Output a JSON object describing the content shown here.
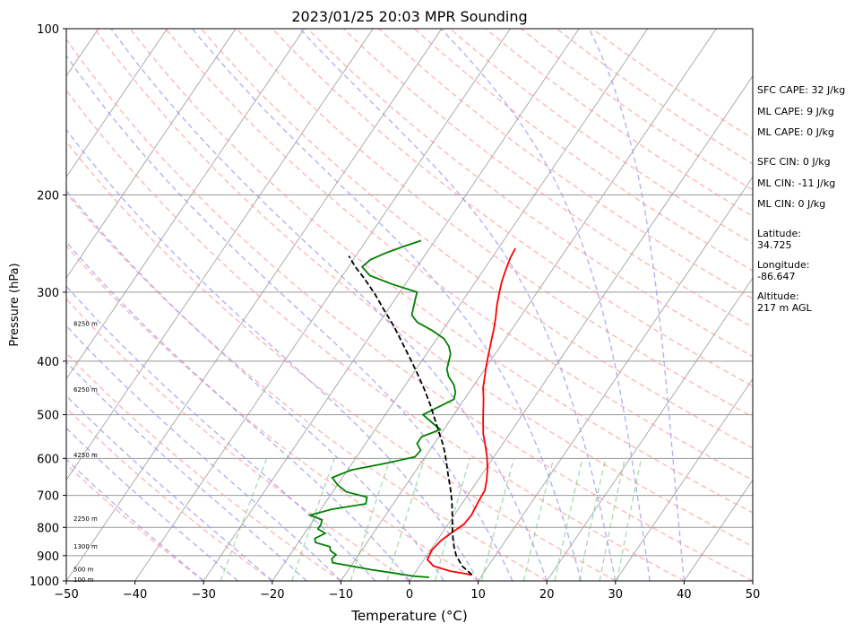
{
  "chart_data": {
    "type": "line",
    "title": "2023/01/25 20:03 MPR Sounding",
    "xlabel": "Temperature (°C)",
    "ylabel": "Pressure (hPa)",
    "xlim": [
      -50,
      50
    ],
    "ylim": [
      1000,
      100
    ],
    "y_scale": "log",
    "skew": "skew-T",
    "grid": true,
    "xticks": [
      "−50",
      "−40",
      "−30",
      "−20",
      "−10",
      "0",
      "10",
      "20",
      "30",
      "40",
      "50"
    ],
    "yticks": [
      "100",
      "200",
      "300",
      "400",
      "500",
      "600",
      "700",
      "800",
      "900",
      "1000"
    ],
    "series": [
      {
        "color": "#ff0000",
        "points": [
          [
            8.5,
            975
          ],
          [
            5,
            960
          ],
          [
            2,
            940
          ],
          [
            0.5,
            915
          ],
          [
            0.2,
            880
          ],
          [
            0.6,
            845
          ],
          [
            1.3,
            820
          ],
          [
            2.3,
            790
          ],
          [
            2.5,
            760
          ],
          [
            2.2,
            720
          ],
          [
            2.0,
            685
          ],
          [
            1.2,
            655
          ],
          [
            0.2,
            625
          ],
          [
            -1.0,
            596
          ],
          [
            -2.4,
            568
          ],
          [
            -3.8,
            542
          ],
          [
            -5.0,
            516
          ],
          [
            -6.1,
            492
          ],
          [
            -7.2,
            469
          ],
          [
            -8.4,
            447
          ],
          [
            -9.3,
            426
          ],
          [
            -10.2,
            406
          ],
          [
            -11.0,
            387
          ],
          [
            -11.8,
            369
          ],
          [
            -12.6,
            351
          ],
          [
            -13.5,
            334
          ],
          [
            -14.5,
            318
          ],
          [
            -15.4,
            302
          ],
          [
            -16.2,
            287
          ],
          [
            -16.8,
            273
          ],
          [
            -17.3,
            260
          ],
          [
            -17.5,
            250
          ]
        ]
      },
      {
        "color": "#008000",
        "points": [
          [
            2.5,
            985
          ],
          [
            0,
            980
          ],
          [
            -3,
            968
          ],
          [
            -6.5,
            955
          ],
          [
            -10,
            940
          ],
          [
            -13,
            927
          ],
          [
            -13.5,
            912
          ],
          [
            -13.3,
            897
          ],
          [
            -14.5,
            882
          ],
          [
            -15.0,
            867
          ],
          [
            -17.5,
            852
          ],
          [
            -18.0,
            838
          ],
          [
            -17.0,
            820
          ],
          [
            -18.5,
            805
          ],
          [
            -18.5,
            790
          ],
          [
            -18.8,
            775
          ],
          [
            -21.0,
            760
          ],
          [
            -18.5,
            742
          ],
          [
            -14.0,
            725
          ],
          [
            -14.5,
            705
          ],
          [
            -18.0,
            690
          ],
          [
            -20.0,
            670
          ],
          [
            -21.5,
            650
          ],
          [
            -19.5,
            630
          ],
          [
            -15.0,
            612
          ],
          [
            -11.5,
            596
          ],
          [
            -11.3,
            580
          ],
          [
            -12.5,
            564
          ],
          [
            -12.5,
            548
          ],
          [
            -10.5,
            532
          ],
          [
            -12.5,
            516
          ],
          [
            -14.5,
            500
          ],
          [
            -13.0,
            484
          ],
          [
            -11.5,
            469
          ],
          [
            -12.0,
            455
          ],
          [
            -13.0,
            441
          ],
          [
            -14.5,
            427
          ],
          [
            -15.5,
            414
          ],
          [
            -16.0,
            401
          ],
          [
            -16.5,
            388
          ],
          [
            -17.5,
            376
          ],
          [
            -19.0,
            364
          ],
          [
            -21.5,
            352
          ],
          [
            -24.5,
            340
          ],
          [
            -26.0,
            330
          ],
          [
            -26.5,
            320
          ],
          [
            -27.0,
            310
          ],
          [
            -27.5,
            300
          ],
          [
            -32.0,
            290
          ],
          [
            -36.0,
            280
          ],
          [
            -38.0,
            270
          ],
          [
            -37.5,
            262
          ],
          [
            -36.0,
            255
          ],
          [
            -34.0,
            248
          ],
          [
            -32.0,
            242
          ]
        ]
      },
      {
        "color": "#000000",
        "dashed": true,
        "points": [
          [
            8.5,
            975
          ],
          [
            6.2,
            940
          ],
          [
            4.3,
            900
          ],
          [
            3.2,
            870
          ],
          [
            2.2,
            840
          ],
          [
            1.4,
            815
          ],
          [
            0.5,
            785
          ],
          [
            -0.6,
            750
          ],
          [
            -1.8,
            715
          ],
          [
            -3.2,
            680
          ],
          [
            -5.0,
            640
          ],
          [
            -6.6,
            605
          ],
          [
            -8.4,
            570
          ],
          [
            -10.3,
            540
          ],
          [
            -12.3,
            510
          ],
          [
            -14.4,
            480
          ],
          [
            -16.8,
            450
          ],
          [
            -19.5,
            420
          ],
          [
            -22.0,
            395
          ],
          [
            -24.7,
            370
          ],
          [
            -27.6,
            345
          ],
          [
            -30.7,
            322
          ],
          [
            -33.5,
            302
          ],
          [
            -36.6,
            283
          ],
          [
            -39.0,
            270
          ],
          [
            -41.0,
            258
          ]
        ]
      }
    ],
    "height_labels": [
      {
        "text": "100 m",
        "p": 997
      },
      {
        "text": "500 m",
        "p": 955
      },
      {
        "text": "1300 m",
        "p": 868
      },
      {
        "text": "2250 m",
        "p": 773
      },
      {
        "text": "4250 m",
        "p": 592
      },
      {
        "text": "6250 m",
        "p": 451
      },
      {
        "text": "8250 m",
        "p": 343
      }
    ],
    "colors": {
      "temperature": "#ff0000",
      "dewpoint": "#008000",
      "parcel": "#000000",
      "dry_adiabat": "#ff9999",
      "moist_adiabat": "#9999ee",
      "mixing_ratio": "#66bb66",
      "isotherm": "#999999",
      "isobar": "#999999"
    }
  },
  "info": {
    "sfc_cape": "SFC CAPE: 32 J/kg",
    "ml_cape_1": "ML CAPE: 9 J/kg",
    "ml_cape_2": "ML CAPE: 0 J/kg",
    "sfc_cin": "SFC CIN: 0 J/kg",
    "ml_cin_1": "ML CIN: -11 J/kg",
    "ml_cin_2": "ML CIN: 0 J/kg",
    "latitude_label": "Latitude:",
    "latitude_value": "34.725",
    "longitude_label": "Longitude:",
    "longitude_value": "-86.647",
    "altitude_label": "Altitude:",
    "altitude_value": "217 m AGL"
  }
}
